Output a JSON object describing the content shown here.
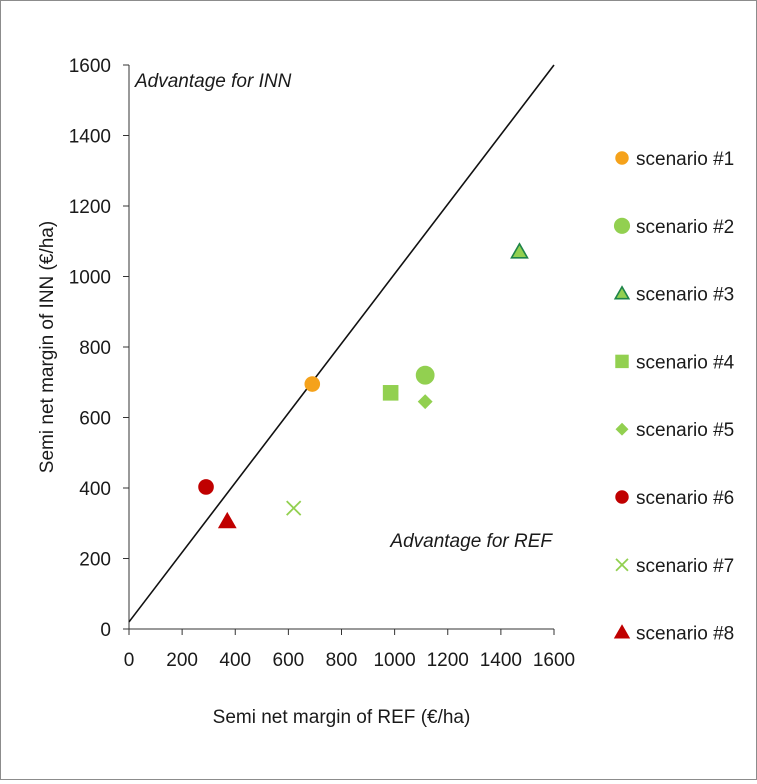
{
  "chart_data": {
    "type": "scatter",
    "title": "",
    "xlabel": "Semi net margin of REF (€/ha)",
    "ylabel": "Semi net margin of INN (€/ha)",
    "xlim": [
      0,
      1600
    ],
    "ylim": [
      0,
      1600
    ],
    "xticks": [
      "0",
      "200",
      "400",
      "600",
      "800",
      "1000",
      "1200",
      "1400",
      "1600"
    ],
    "yticks": [
      "0",
      "200",
      "400",
      "600",
      "800",
      "1000",
      "1200",
      "1400",
      "1600"
    ],
    "grid": false,
    "legend_position": "right",
    "reference_line": {
      "from": [
        0,
        20
      ],
      "to": [
        1600,
        1600
      ]
    },
    "annotations": [
      {
        "text": "Advantage for INN"
      },
      {
        "text": "Advantage for REF"
      }
    ],
    "series": [
      {
        "name": "scenario #1",
        "marker": "circle",
        "color": "#f5a21b",
        "stroke": "#f5a21b",
        "x": [
          690
        ],
        "y": [
          695
        ]
      },
      {
        "name": "scenario #2",
        "marker": "circle-large",
        "color": "#92d050",
        "stroke": "#92d050",
        "x": [
          1115
        ],
        "y": [
          720
        ]
      },
      {
        "name": "scenario #3",
        "marker": "triangle",
        "color": "#92d050",
        "stroke": "#1e8449",
        "x": [
          1470
        ],
        "y": [
          1070
        ]
      },
      {
        "name": "scenario #4",
        "marker": "square",
        "color": "#92d050",
        "stroke": "#92d050",
        "x": [
          985
        ],
        "y": [
          670
        ]
      },
      {
        "name": "scenario #5",
        "marker": "diamond",
        "color": "#92d050",
        "stroke": "#92d050",
        "x": [
          1115
        ],
        "y": [
          645
        ]
      },
      {
        "name": "scenario #6",
        "marker": "circle",
        "color": "#c00000",
        "stroke": "#c00000",
        "x": [
          290
        ],
        "y": [
          403
        ]
      },
      {
        "name": "scenario #7",
        "marker": "x",
        "color": "#92d050",
        "stroke": "#92d050",
        "x": [
          620
        ],
        "y": [
          343
        ]
      },
      {
        "name": "scenario #8",
        "marker": "triangle",
        "color": "#c00000",
        "stroke": "#c00000",
        "x": [
          370
        ],
        "y": [
          305
        ]
      }
    ]
  }
}
